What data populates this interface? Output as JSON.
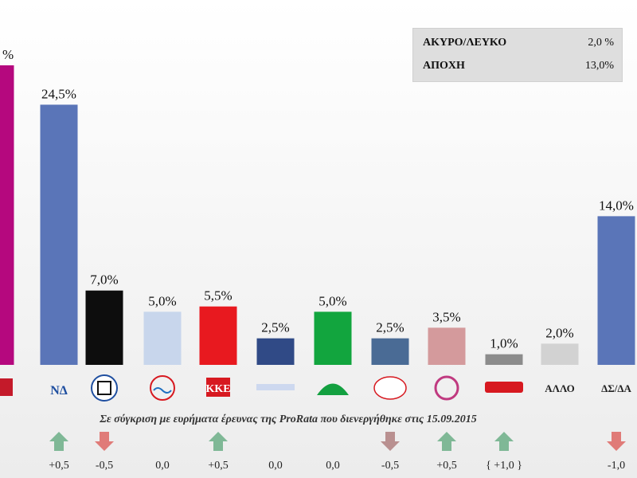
{
  "chart_data": {
    "type": "bar",
    "categories": [
      "ΣΥΡΙΖΑ",
      "ΝΔ",
      "Χρυσή Αυγή",
      "Ποτάμι",
      "ΚΚΕ",
      "ΑΝΕΛ",
      "ΠΑΣΟΚ",
      "Λαϊκή Ενότητα",
      "Ένωση Κεντρώων",
      "Ανταρσύα",
      "ΑΛΛΟ",
      "ΔΣ/ΔΑ"
    ],
    "values": [
      null,
      24.5,
      7.0,
      5.0,
      5.5,
      2.5,
      5.0,
      2.5,
      3.5,
      1.0,
      2.0,
      14.0
    ],
    "value_labels": [
      "%",
      "24,5%",
      "7,0%",
      "5,0%",
      "5,5%",
      "2,5%",
      "5,0%",
      "2,5%",
      "3,5%",
      "1,0%",
      "2,0%",
      "14,0%"
    ],
    "colors": [
      "#b5087e",
      "#5a75b8",
      "#0d0d0d",
      "#c8d6ec",
      "#e8191f",
      "#304a86",
      "#12a53e",
      "#4a6b95",
      "#d49a9c",
      "#8c8c8c",
      "#d2d2d2",
      "#5a75b8"
    ],
    "party_marks": [
      "ΝΔ",
      "ΚΚΕ",
      "ΑΛΛΟ",
      "ΔΣ/ΔΑ"
    ],
    "changes": [
      null,
      "+0,5",
      "-0,5",
      "0,0",
      "+0,5",
      "0,0",
      "0,0",
      "-0,5",
      "+0,5",
      "{ +1,0 }",
      "",
      "-1,0"
    ],
    "change_direction": [
      null,
      "up",
      "down",
      "none",
      "up",
      "none",
      "none",
      "down",
      "up",
      "up",
      "none",
      "down"
    ],
    "ylim": [
      0,
      30
    ],
    "grid": false,
    "caption": "Σε σύγκριση με ευρήματα έρευνας της ProRata που διενεργήθηκε στις 15.09.2015",
    "info_box": [
      {
        "label": "ΑΚΥΡΟ/ΛΕΥΚΟ",
        "value": "2,0 %"
      },
      {
        "label": "ΑΠΟΧΗ",
        "value": "13,0%"
      }
    ],
    "title": "",
    "xlabel": "",
    "ylabel": ""
  },
  "colors": {
    "arrow_up": "#7fb896",
    "arrow_down": "#e07b78",
    "arrow_down_muted": "#b99090"
  }
}
